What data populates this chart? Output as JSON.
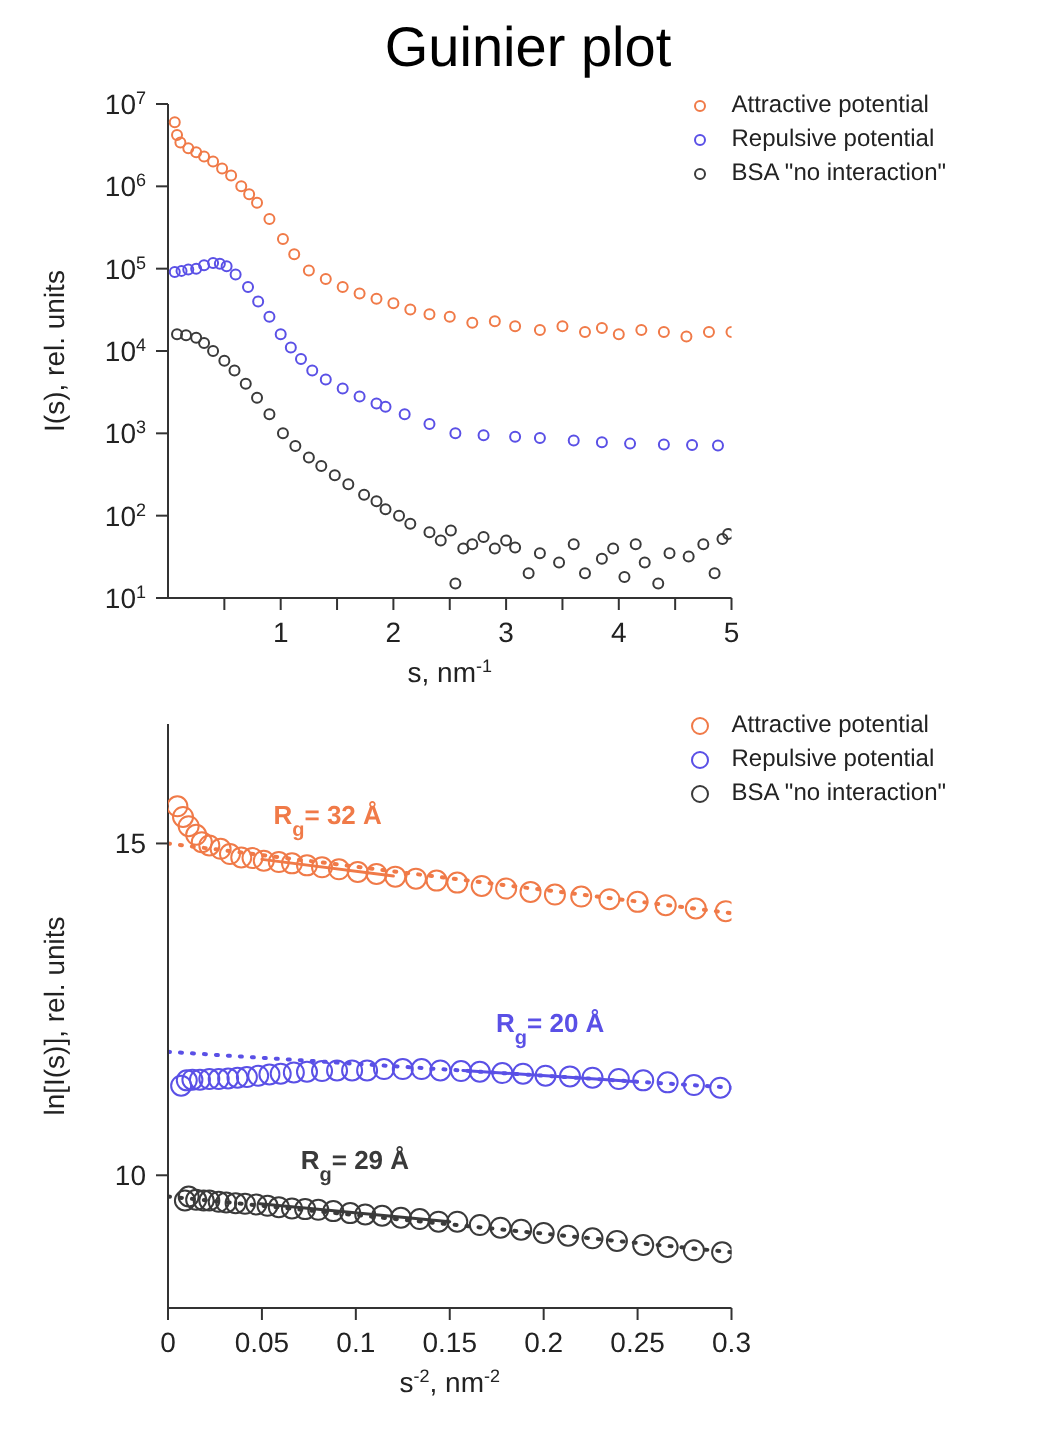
{
  "chart_data": [
    {
      "type": "scatter",
      "title": "Guinier plot",
      "xlabel": "s, nm$^{-1}$",
      "ylabel": "I(s), rel. units",
      "log": "y",
      "marker": "circle",
      "legend": "top right",
      "xlim": [
        0,
        5
      ],
      "xticks": [
        {
          "value": 0.5,
          "label": null
        },
        1,
        {
          "value": 1.5,
          "label": null
        },
        2,
        {
          "value": 2.5,
          "label": null
        },
        3,
        {
          "value": 3.5,
          "label": null
        },
        4,
        {
          "value": 4.5,
          "label": null
        },
        5
      ],
      "ylim": [
        10,
        10000000
      ],
      "yticks": [
        {
          "value": 10,
          "label": "10$^{1}$"
        },
        {
          "value": 100,
          "label": "10$^{2}$"
        },
        {
          "value": 1000,
          "label": "10$^{3}$"
        },
        {
          "value": 10000,
          "label": "10$^{4}$"
        },
        {
          "value": 100000,
          "label": "10$^{5}$"
        },
        {
          "value": 1000000,
          "label": "10$^{6}$"
        },
        {
          "value": 10000000,
          "label": "10$^{7}$"
        }
      ],
      "series": [
        {
          "name": "Attractive potential",
          "color": "#f07a48",
          "x": [
            0.06,
            0.08,
            0.11,
            0.18,
            0.25,
            0.32,
            0.4,
            0.48,
            0.56,
            0.65,
            0.72,
            0.79,
            0.9,
            1.02,
            1.12,
            1.25,
            1.4,
            1.55,
            1.7,
            1.85,
            2.0,
            2.15,
            2.32,
            2.5,
            2.7,
            2.9,
            3.08,
            3.3,
            3.5,
            3.7,
            3.85,
            4.0,
            4.2,
            4.4,
            4.6,
            4.8,
            5.0
          ],
          "values": [
            6000000,
            4200000,
            3400000,
            2900000,
            2600000,
            2300000,
            2000000,
            1650000,
            1350000,
            1000000,
            800000,
            630000,
            400000,
            230000,
            150000,
            95000,
            75000,
            60000,
            50000,
            43000,
            38000,
            32000,
            28000,
            26000,
            22000,
            23000,
            20000,
            18000,
            20000,
            17000,
            19000,
            16000,
            18000,
            17000,
            15000,
            17000,
            17000
          ]
        },
        {
          "name": "Repulsive potential",
          "color": "#5a50e6",
          "x": [
            0.06,
            0.12,
            0.18,
            0.25,
            0.32,
            0.4,
            0.46,
            0.52,
            0.6,
            0.71,
            0.8,
            0.9,
            1.0,
            1.09,
            1.18,
            1.28,
            1.4,
            1.55,
            1.7,
            1.85,
            1.93,
            2.1,
            2.32,
            2.55,
            2.8,
            3.08,
            3.3,
            3.6,
            3.85,
            4.1,
            4.4,
            4.65,
            4.88
          ],
          "values": [
            91000,
            94000,
            98000,
            100000,
            110000,
            117000,
            115000,
            107000,
            85000,
            60000,
            40000,
            26000,
            16000,
            11000,
            8000,
            5800,
            4500,
            3500,
            2800,
            2300,
            2100,
            1700,
            1300,
            1000,
            950,
            910,
            880,
            820,
            780,
            750,
            730,
            720,
            710
          ]
        },
        {
          "name": "BSA \"no interaction\"",
          "color": "#3a3a3a",
          "x": [
            0.08,
            0.16,
            0.25,
            0.32,
            0.4,
            0.5,
            0.59,
            0.69,
            0.79,
            0.9,
            1.02,
            1.13,
            1.25,
            1.36,
            1.48,
            1.6,
            1.74,
            1.85,
            1.93,
            2.05,
            2.15,
            2.32,
            2.42,
            2.51,
            2.55,
            2.62,
            2.7,
            2.8,
            2.9,
            3.0,
            3.08,
            3.2,
            3.3,
            3.47,
            3.6,
            3.7,
            3.85,
            3.95,
            4.05,
            4.15,
            4.23,
            4.35,
            4.45,
            4.62,
            4.75,
            4.85,
            4.92,
            4.97
          ],
          "values": [
            16000,
            15500,
            14500,
            12500,
            10000,
            7600,
            5800,
            4000,
            2700,
            1700,
            1000,
            700,
            510,
            400,
            310,
            240,
            180,
            150,
            120,
            100,
            80,
            63,
            50,
            66,
            15,
            40,
            45,
            55,
            40,
            50,
            41,
            20,
            35,
            27,
            45,
            20,
            30,
            40,
            18,
            45,
            27,
            15,
            35,
            32,
            45,
            20,
            52,
            60
          ]
        }
      ]
    },
    {
      "type": "scatter",
      "xlabel": "s$^{-2}$, nm$^{-2}$",
      "ylabel": "ln[I(s)], rel. units",
      "legend": "top right",
      "xlim": [
        0,
        0.3
      ],
      "xticks": [
        0,
        0.05,
        0.1,
        0.15,
        0.2,
        0.25,
        0.3
      ],
      "ylim": [
        8,
        16.8
      ],
      "yticks": [
        10,
        15
      ],
      "annotations": [
        "R$_{g}$= 32 Å",
        "R$_{g}$= 20 Å",
        "R$_{g}$= 29 Å"
      ],
      "series": [
        {
          "name": "Attractive potential",
          "color": "#f07a48",
          "marker": "circle",
          "x": [
            0.005,
            0.008,
            0.011,
            0.015,
            0.018,
            0.022,
            0.028,
            0.033,
            0.039,
            0.045,
            0.051,
            0.059,
            0.066,
            0.074,
            0.082,
            0.091,
            0.101,
            0.111,
            0.121,
            0.132,
            0.143,
            0.154,
            0.167,
            0.18,
            0.193,
            0.206,
            0.22,
            0.235,
            0.25,
            0.265,
            0.281,
            0.297
          ],
          "values": [
            15.56,
            15.4,
            15.26,
            15.13,
            15.02,
            14.97,
            14.92,
            14.84,
            14.79,
            14.78,
            14.74,
            14.72,
            14.7,
            14.67,
            14.64,
            14.61,
            14.57,
            14.54,
            14.5,
            14.47,
            14.44,
            14.41,
            14.36,
            14.32,
            14.27,
            14.23,
            14.2,
            14.16,
            14.12,
            14.07,
            14.02,
            13.98
          ]
        },
        {
          "name": "Repulsive potential",
          "color": "#5a50e6",
          "marker": "circle",
          "x": [
            0.007,
            0.01,
            0.013,
            0.017,
            0.022,
            0.027,
            0.032,
            0.037,
            0.042,
            0.048,
            0.054,
            0.06,
            0.067,
            0.074,
            0.082,
            0.09,
            0.098,
            0.106,
            0.115,
            0.125,
            0.135,
            0.145,
            0.156,
            0.166,
            0.178,
            0.189,
            0.201,
            0.214,
            0.226,
            0.24,
            0.253,
            0.266,
            0.28,
            0.294
          ],
          "values": [
            11.35,
            11.43,
            11.44,
            11.44,
            11.45,
            11.45,
            11.46,
            11.47,
            11.48,
            11.5,
            11.52,
            11.53,
            11.55,
            11.56,
            11.57,
            11.58,
            11.58,
            11.58,
            11.6,
            11.6,
            11.6,
            11.58,
            11.57,
            11.56,
            11.54,
            11.53,
            11.5,
            11.49,
            11.47,
            11.45,
            11.43,
            11.4,
            11.36,
            11.32
          ]
        },
        {
          "name": "BSA \"no interaction\"",
          "color": "#3a3a3a",
          "marker": "circle",
          "x": [
            0.009,
            0.011,
            0.015,
            0.019,
            0.022,
            0.027,
            0.031,
            0.036,
            0.041,
            0.047,
            0.053,
            0.059,
            0.066,
            0.073,
            0.08,
            0.088,
            0.097,
            0.105,
            0.114,
            0.124,
            0.134,
            0.144,
            0.154,
            0.166,
            0.177,
            0.188,
            0.2,
            0.213,
            0.226,
            0.239,
            0.253,
            0.266,
            0.28,
            0.295
          ],
          "values": [
            9.62,
            9.68,
            9.63,
            9.62,
            9.62,
            9.6,
            9.59,
            9.58,
            9.57,
            9.56,
            9.54,
            9.52,
            9.5,
            9.49,
            9.48,
            9.46,
            9.43,
            9.41,
            9.39,
            9.36,
            9.34,
            9.3,
            9.3,
            9.25,
            9.21,
            9.18,
            9.13,
            9.09,
            9.05,
            9.01,
            8.95,
            8.92,
            8.87,
            8.84
          ]
        },
        {
          "type": "line",
          "color": "#f07a48",
          "line_style": "dotted",
          "x": [
            0,
            0.3
          ],
          "values": [
            15.0,
            13.95
          ]
        },
        {
          "type": "line",
          "color": "#f07a48",
          "line_style": "solid",
          "x": [
            0.05,
            0.12
          ],
          "values": [
            14.76,
            14.51
          ]
        },
        {
          "type": "line",
          "color": "#5a50e6",
          "line_style": "dotted",
          "x": [
            0,
            0.3
          ],
          "values": [
            11.86,
            11.32
          ]
        },
        {
          "type": "line",
          "color": "#5a50e6",
          "line_style": "solid",
          "x": [
            0.157,
            0.25
          ],
          "values": [
            11.58,
            11.41
          ]
        },
        {
          "type": "line",
          "color": "#3a3a3a",
          "line_style": "dotted",
          "x": [
            0,
            0.3
          ],
          "values": [
            9.68,
            8.84
          ]
        },
        {
          "type": "line",
          "color": "#3a3a3a",
          "line_style": "solid",
          "x": [
            0.049,
            0.15
          ],
          "values": [
            9.57,
            9.3
          ]
        }
      ]
    }
  ]
}
